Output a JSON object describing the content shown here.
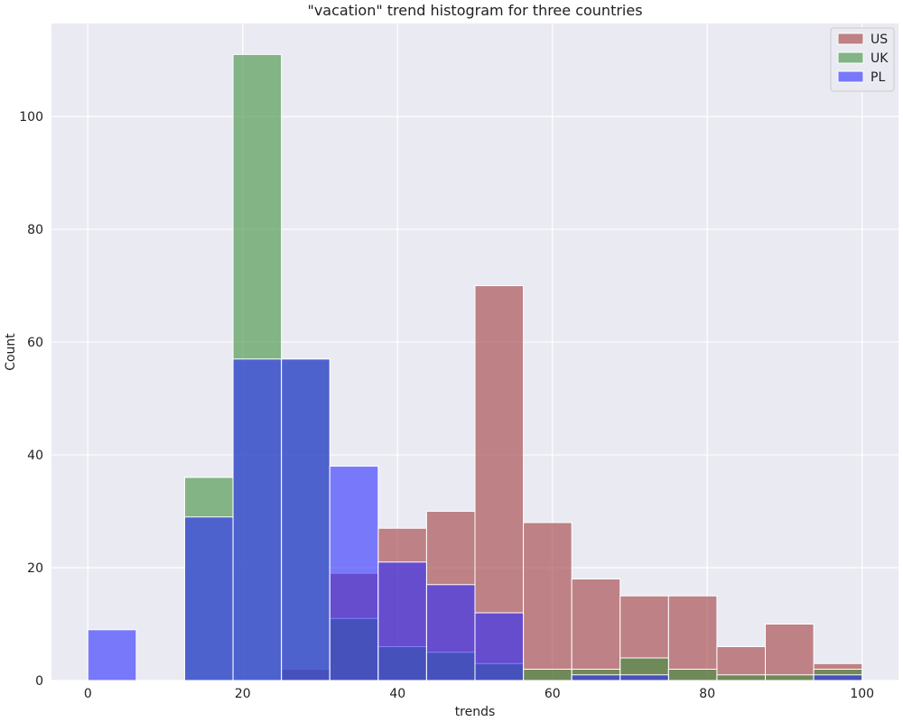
{
  "chart_data": {
    "type": "bar",
    "subtype": "overlaid-histogram",
    "title": "\"vacation\" trend histogram for three countries",
    "xlabel": "trends",
    "ylabel": "Count",
    "xlim": [
      -4.7,
      104.7
    ],
    "ylim": [
      0,
      116.5
    ],
    "xticks": [
      0,
      20,
      40,
      60,
      80,
      100
    ],
    "yticks": [
      0,
      20,
      40,
      60,
      80,
      100
    ],
    "grid": true,
    "legend_position": "top-right",
    "bin_edges": [
      0,
      6.25,
      12.5,
      18.75,
      25,
      31.25,
      37.5,
      43.75,
      50,
      56.25,
      62.5,
      68.75,
      75,
      81.25,
      87.5,
      93.75,
      100
    ],
    "series": [
      {
        "name": "US",
        "color": "#a03a3c",
        "values": [
          0,
          0,
          0,
          0,
          2,
          19,
          27,
          30,
          70,
          28,
          18,
          15,
          15,
          6,
          10,
          3
        ]
      },
      {
        "name": "UK",
        "color": "#3c8f3c",
        "values": [
          0,
          0,
          36,
          111,
          57,
          11,
          6,
          5,
          3,
          2,
          2,
          4,
          2,
          1,
          1,
          2
        ]
      },
      {
        "name": "PL",
        "color": "#2b2bff",
        "values": [
          9,
          0,
          29,
          57,
          57,
          38,
          21,
          17,
          12,
          0,
          1,
          1,
          0,
          0,
          0,
          1
        ]
      }
    ]
  }
}
